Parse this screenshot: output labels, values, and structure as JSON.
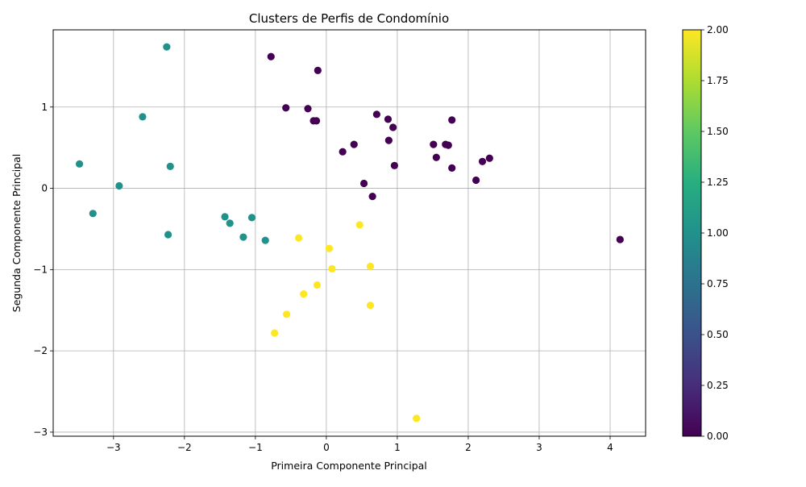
{
  "chart_data": {
    "type": "scatter",
    "title": "Clusters de Perfis de Condomínio",
    "xlabel": "Primeira Componente Principal",
    "ylabel": "Segunda Componente Principal",
    "xlim": [
      -3.85,
      4.5
    ],
    "ylim": [
      -3.05,
      1.95
    ],
    "xticks": [
      -3,
      -2,
      -1,
      0,
      1,
      2,
      3,
      4
    ],
    "yticks": [
      -3,
      -2,
      -1,
      0,
      1
    ],
    "tick_labels_x": [
      "−3",
      "−2",
      "−1",
      "0",
      "1",
      "2",
      "3",
      "4"
    ],
    "tick_labels_y": [
      "−3",
      "−2",
      "−1",
      "0",
      "1"
    ],
    "grid": true,
    "colormap": "viridis",
    "colorbar": {
      "range": [
        0,
        2
      ],
      "ticks": [
        0,
        0.25,
        0.5,
        0.75,
        1.0,
        1.25,
        1.5,
        1.75,
        2.0
      ],
      "tick_labels": [
        "0.00",
        "0.25",
        "0.50",
        "0.75",
        "1.00",
        "1.25",
        "1.50",
        "1.75",
        "2.00"
      ]
    },
    "cluster_colors": {
      "0": "#440154",
      "1": "#21918c",
      "2": "#fde725"
    },
    "points": [
      {
        "x": -0.78,
        "y": 1.62,
        "c": 0
      },
      {
        "x": -0.12,
        "y": 1.45,
        "c": 0
      },
      {
        "x": -0.57,
        "y": 0.99,
        "c": 0
      },
      {
        "x": -0.26,
        "y": 0.98,
        "c": 0
      },
      {
        "x": -0.18,
        "y": 0.83,
        "c": 0
      },
      {
        "x": -0.14,
        "y": 0.83,
        "c": 0
      },
      {
        "x": 0.71,
        "y": 0.91,
        "c": 0
      },
      {
        "x": 0.87,
        "y": 0.85,
        "c": 0
      },
      {
        "x": 0.94,
        "y": 0.75,
        "c": 0
      },
      {
        "x": 1.77,
        "y": 0.84,
        "c": 0
      },
      {
        "x": 0.88,
        "y": 0.59,
        "c": 0
      },
      {
        "x": 0.39,
        "y": 0.54,
        "c": 0
      },
      {
        "x": 0.23,
        "y": 0.45,
        "c": 0
      },
      {
        "x": 1.51,
        "y": 0.54,
        "c": 0
      },
      {
        "x": 1.68,
        "y": 0.54,
        "c": 0
      },
      {
        "x": 1.72,
        "y": 0.53,
        "c": 0
      },
      {
        "x": 1.55,
        "y": 0.38,
        "c": 0
      },
      {
        "x": 2.3,
        "y": 0.37,
        "c": 0
      },
      {
        "x": 2.2,
        "y": 0.33,
        "c": 0
      },
      {
        "x": 0.96,
        "y": 0.28,
        "c": 0
      },
      {
        "x": 1.77,
        "y": 0.25,
        "c": 0
      },
      {
        "x": 2.11,
        "y": 0.1,
        "c": 0
      },
      {
        "x": 0.53,
        "y": 0.06,
        "c": 0
      },
      {
        "x": 0.65,
        "y": -0.1,
        "c": 0
      },
      {
        "x": 4.14,
        "y": -0.63,
        "c": 0
      },
      {
        "x": -2.25,
        "y": 1.74,
        "c": 1
      },
      {
        "x": -2.59,
        "y": 0.88,
        "c": 1
      },
      {
        "x": -3.48,
        "y": 0.3,
        "c": 1
      },
      {
        "x": -2.2,
        "y": 0.27,
        "c": 1
      },
      {
        "x": -2.92,
        "y": 0.03,
        "c": 1
      },
      {
        "x": -3.29,
        "y": -0.31,
        "c": 1
      },
      {
        "x": -1.43,
        "y": -0.35,
        "c": 1
      },
      {
        "x": -1.05,
        "y": -0.36,
        "c": 1
      },
      {
        "x": -1.36,
        "y": -0.43,
        "c": 1
      },
      {
        "x": -2.23,
        "y": -0.57,
        "c": 1
      },
      {
        "x": -1.17,
        "y": -0.6,
        "c": 1
      },
      {
        "x": -0.86,
        "y": -0.64,
        "c": 1
      },
      {
        "x": 0.47,
        "y": -0.45,
        "c": 2
      },
      {
        "x": -0.39,
        "y": -0.61,
        "c": 2
      },
      {
        "x": 0.04,
        "y": -0.74,
        "c": 2
      },
      {
        "x": 0.62,
        "y": -0.96,
        "c": 2
      },
      {
        "x": 0.08,
        "y": -0.99,
        "c": 2
      },
      {
        "x": -0.13,
        "y": -1.19,
        "c": 2
      },
      {
        "x": -0.32,
        "y": -1.3,
        "c": 2
      },
      {
        "x": 0.62,
        "y": -1.44,
        "c": 2
      },
      {
        "x": -0.56,
        "y": -1.55,
        "c": 2
      },
      {
        "x": -0.73,
        "y": -1.78,
        "c": 2
      },
      {
        "x": 1.27,
        "y": -2.83,
        "c": 2
      }
    ]
  }
}
